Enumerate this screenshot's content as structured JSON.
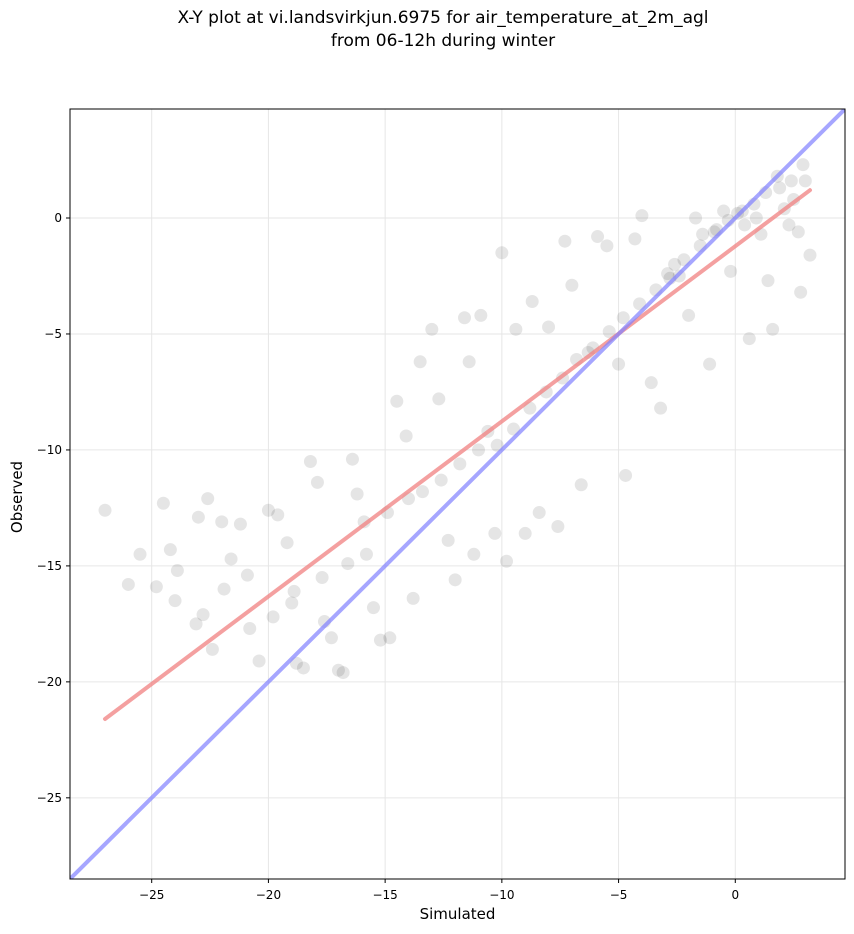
{
  "chart_data": {
    "type": "scatter",
    "title_line1": "X-Y plot at vi.landsvirkjun.6975 for air_temperature_at_2m_agl",
    "title_line2": "from 06-12h during winter",
    "xlabel": "Simulated",
    "ylabel": "Observed",
    "xlim": [
      -28.5,
      4.7
    ],
    "ylim": [
      -28.5,
      4.7
    ],
    "xticks": [
      -25,
      -20,
      -15,
      -10,
      -5,
      0
    ],
    "yticks": [
      -25,
      -20,
      -15,
      -10,
      -5,
      0
    ],
    "xtick_labels": [
      "−25",
      "−20",
      "−15",
      "−10",
      "−5",
      "0"
    ],
    "ytick_labels": [
      "−25",
      "−20",
      "−15",
      "−10",
      "−5",
      "0"
    ],
    "grid": true,
    "points": [
      [
        -27.0,
        -12.6
      ],
      [
        -24.5,
        -12.3
      ],
      [
        -24.2,
        -14.3
      ],
      [
        -24.0,
        -16.5
      ],
      [
        -24.8,
        -15.9
      ],
      [
        -23.9,
        -15.2
      ],
      [
        -23.0,
        -12.9
      ],
      [
        -22.6,
        -12.1
      ],
      [
        -22.0,
        -13.1
      ],
      [
        -22.8,
        -17.1
      ],
      [
        -23.1,
        -17.5
      ],
      [
        -22.4,
        -18.6
      ],
      [
        -21.2,
        -13.2
      ],
      [
        -21.6,
        -14.7
      ],
      [
        -20.8,
        -17.7
      ],
      [
        -20.4,
        -19.1
      ],
      [
        -20.0,
        -12.6
      ],
      [
        -19.6,
        -12.8
      ],
      [
        -19.2,
        -14.0
      ],
      [
        -19.0,
        -16.6
      ],
      [
        -18.8,
        -19.2
      ],
      [
        -18.5,
        -19.4
      ],
      [
        -18.2,
        -10.5
      ],
      [
        -17.9,
        -11.4
      ],
      [
        -17.6,
        -17.4
      ],
      [
        -17.3,
        -18.1
      ],
      [
        -17.0,
        -19.5
      ],
      [
        -16.8,
        -19.6
      ],
      [
        -16.4,
        -10.4
      ],
      [
        -16.2,
        -11.9
      ],
      [
        -15.8,
        -14.5
      ],
      [
        -15.5,
        -16.8
      ],
      [
        -15.2,
        -18.2
      ],
      [
        -14.8,
        -18.1
      ],
      [
        -14.5,
        -7.9
      ],
      [
        -14.1,
        -9.4
      ],
      [
        -13.8,
        -16.4
      ],
      [
        -13.5,
        -6.2
      ],
      [
        -13.0,
        -4.8
      ],
      [
        -12.7,
        -7.8
      ],
      [
        -12.3,
        -13.9
      ],
      [
        -12.0,
        -15.6
      ],
      [
        -11.6,
        -4.3
      ],
      [
        -11.4,
        -6.2
      ],
      [
        -11.2,
        -14.5
      ],
      [
        -10.9,
        -4.2
      ],
      [
        -10.6,
        -9.2
      ],
      [
        -10.3,
        -13.6
      ],
      [
        -10.0,
        -1.5
      ],
      [
        -9.8,
        -14.8
      ],
      [
        -9.4,
        -4.8
      ],
      [
        -9.0,
        -13.6
      ],
      [
        -8.7,
        -3.6
      ],
      [
        -8.4,
        -12.7
      ],
      [
        -8.0,
        -4.7
      ],
      [
        -7.6,
        -13.3
      ],
      [
        -7.3,
        -1.0
      ],
      [
        -7.0,
        -2.9
      ],
      [
        -6.6,
        -11.5
      ],
      [
        -6.3,
        -5.8
      ],
      [
        -5.9,
        -0.8
      ],
      [
        -5.5,
        -1.2
      ],
      [
        -5.0,
        -6.3
      ],
      [
        -4.7,
        -11.1
      ],
      [
        -4.3,
        -0.9
      ],
      [
        -4.0,
        0.1
      ],
      [
        -3.6,
        -7.1
      ],
      [
        -3.2,
        -8.2
      ],
      [
        -2.8,
        -2.6
      ],
      [
        -2.6,
        -2.0
      ],
      [
        -2.4,
        -2.5
      ],
      [
        -2.0,
        -4.2
      ],
      [
        -1.7,
        0.0
      ],
      [
        -1.4,
        -0.7
      ],
      [
        -1.1,
        -6.3
      ],
      [
        -0.8,
        -0.5
      ],
      [
        -0.5,
        0.3
      ],
      [
        -0.2,
        -2.3
      ],
      [
        0.1,
        0.2
      ],
      [
        0.4,
        -0.3
      ],
      [
        0.6,
        -5.2
      ],
      [
        0.9,
        0.0
      ],
      [
        1.1,
        -0.7
      ],
      [
        1.4,
        -2.7
      ],
      [
        1.6,
        -4.8
      ],
      [
        1.8,
        1.8
      ],
      [
        2.1,
        0.4
      ],
      [
        2.3,
        -0.3
      ],
      [
        2.5,
        0.8
      ],
      [
        2.7,
        -0.6
      ],
      [
        2.8,
        -3.2
      ],
      [
        2.9,
        2.3
      ],
      [
        3.2,
        -1.6
      ],
      [
        3.0,
        1.6
      ],
      [
        -26.0,
        -15.8
      ],
      [
        -25.5,
        -14.5
      ],
      [
        -21.9,
        -16.0
      ],
      [
        -20.9,
        -15.4
      ],
      [
        -19.8,
        -17.2
      ],
      [
        -18.9,
        -16.1
      ],
      [
        -17.7,
        -15.5
      ],
      [
        -16.6,
        -14.9
      ],
      [
        -15.9,
        -13.1
      ],
      [
        -14.9,
        -12.7
      ],
      [
        -14.0,
        -12.1
      ],
      [
        -13.4,
        -11.8
      ],
      [
        -12.6,
        -11.3
      ],
      [
        -11.8,
        -10.6
      ],
      [
        -11.0,
        -10.0
      ],
      [
        -10.2,
        -9.8
      ],
      [
        -9.5,
        -9.1
      ],
      [
        -8.8,
        -8.2
      ],
      [
        -8.1,
        -7.5
      ],
      [
        -7.4,
        -6.9
      ],
      [
        -6.8,
        -6.1
      ],
      [
        -6.1,
        -5.6
      ],
      [
        -5.4,
        -4.9
      ],
      [
        -4.8,
        -4.3
      ],
      [
        -4.1,
        -3.7
      ],
      [
        -3.4,
        -3.1
      ],
      [
        -2.9,
        -2.4
      ],
      [
        -2.2,
        -1.8
      ],
      [
        -1.5,
        -1.2
      ],
      [
        -0.9,
        -0.6
      ],
      [
        -0.3,
        -0.1
      ],
      [
        0.3,
        0.3
      ],
      [
        0.8,
        0.6
      ],
      [
        1.3,
        1.1
      ],
      [
        1.9,
        1.3
      ],
      [
        2.4,
        1.6
      ]
    ],
    "trend_line": {
      "x": [
        -27.0,
        3.2
      ],
      "y": [
        -21.6,
        1.2
      ],
      "color": "#f08080"
    },
    "identity_line": {
      "x": [
        -28.5,
        4.7
      ],
      "y": [
        -28.5,
        4.7
      ],
      "color": "#8080ff"
    },
    "point_color": "#000000"
  }
}
